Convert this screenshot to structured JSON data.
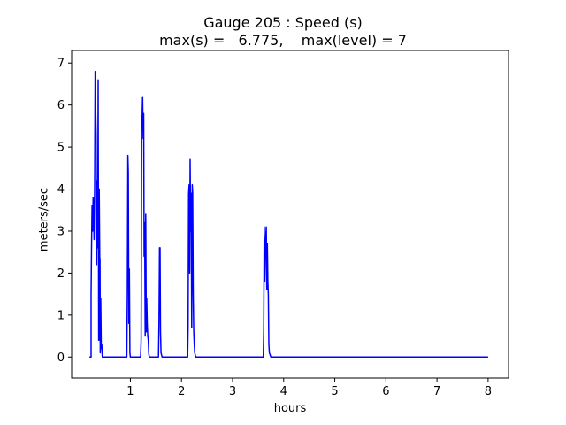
{
  "chart_data": {
    "type": "line",
    "title_line1": "Gauge 205 : Speed (s)",
    "title_line2": "max(s) =   6.775,    max(level) = 7",
    "xlabel": "hours",
    "ylabel": "meters/sec",
    "xlim": [
      -0.15,
      8.4
    ],
    "ylim": [
      -0.5,
      7.3
    ],
    "xticks": [
      1,
      2,
      3,
      4,
      5,
      6,
      7,
      8
    ],
    "yticks": [
      0,
      1,
      2,
      3,
      4,
      5,
      6,
      7
    ],
    "grid": false,
    "color": "#0000ff",
    "series": [
      {
        "x": [
          0.2,
          0.23,
          0.23,
          0.24,
          0.25,
          0.26,
          0.27,
          0.28,
          0.29,
          0.3,
          0.31,
          0.32,
          0.33,
          0.34,
          0.35,
          0.36,
          0.37,
          0.38,
          0.385,
          0.39,
          0.4,
          0.405,
          0.41,
          0.42,
          0.43,
          0.44,
          0.45,
          0.455,
          0.46,
          0.47,
          0.48,
          0.49,
          0.5,
          0.51,
          0.52,
          0.53,
          0.54,
          0.55,
          0.56,
          0.57,
          0.58,
          0.9,
          0.93,
          0.94,
          0.95,
          0.96,
          0.97,
          0.98,
          0.99,
          1.0,
          1.01,
          1.02,
          1.2,
          1.21,
          1.22,
          1.23,
          1.24,
          1.25,
          1.26,
          1.27,
          1.28,
          1.29,
          1.3,
          1.31,
          1.32,
          1.33,
          1.34,
          1.35,
          1.36,
          1.37,
          1.38,
          1.5,
          1.55,
          1.56,
          1.57,
          1.58,
          1.59,
          1.6,
          1.62,
          2.1,
          2.12,
          2.13,
          2.14,
          2.15,
          2.16,
          2.17,
          2.18,
          2.19,
          2.2,
          2.21,
          2.22,
          2.23,
          2.24,
          2.25,
          2.26,
          2.27,
          2.28,
          2.3,
          2.32,
          3.55,
          3.6,
          3.61,
          3.62,
          3.63,
          3.64,
          3.65,
          3.66,
          3.67,
          3.68,
          3.69,
          3.7,
          3.71,
          3.72,
          3.75,
          8.0
        ],
        "y": [
          0,
          0,
          1.5,
          2.6,
          3.6,
          3.0,
          3.8,
          3.5,
          2.8,
          4.0,
          6.8,
          5.9,
          5.3,
          2.2,
          4.2,
          2.6,
          6.6,
          0.4,
          0.4,
          4.0,
          2.4,
          2.3,
          0.1,
          1.4,
          0.2,
          0.3,
          0.0,
          0.0,
          0.0,
          0.0,
          0.0,
          0.0,
          0.0,
          0.0,
          0.0,
          0.0,
          0.0,
          0.0,
          0.0,
          0.0,
          0.0,
          0.0,
          0.0,
          1.5,
          4.8,
          4.4,
          0.8,
          2.1,
          0.1,
          0.0,
          0.0,
          0.0,
          0.0,
          0.4,
          5.5,
          5.7,
          6.2,
          5.2,
          5.8,
          2.4,
          3.2,
          0.5,
          3.4,
          0.6,
          1.4,
          0.8,
          0.5,
          0.4,
          0.1,
          0.0,
          0.0,
          0.0,
          0.0,
          0.8,
          2.6,
          2.6,
          0.6,
          0.1,
          0.0,
          0.0,
          0.0,
          0.7,
          3.9,
          4.1,
          2.0,
          4.7,
          3.0,
          3.9,
          0.7,
          4.1,
          3.9,
          1.5,
          0.6,
          0.3,
          0.1,
          0.05,
          0.0,
          0.0,
          0.0,
          0.0,
          0.0,
          0.6,
          3.1,
          1.8,
          2.5,
          2.9,
          3.1,
          1.6,
          2.7,
          1.8,
          1.5,
          0.3,
          0.1,
          0.0,
          0.0
        ]
      }
    ]
  }
}
